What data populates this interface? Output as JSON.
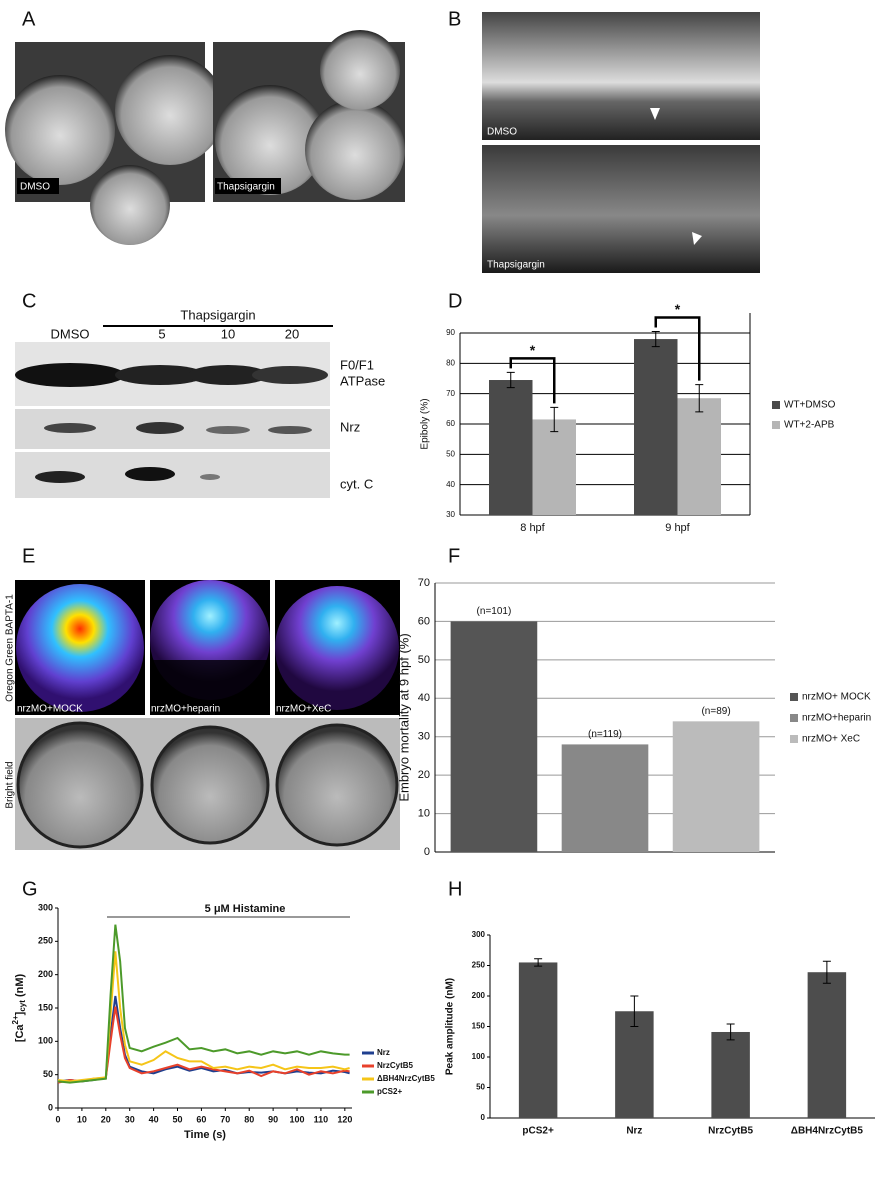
{
  "figure": {
    "panel_labels": [
      "A",
      "B",
      "C",
      "D",
      "E",
      "F",
      "G",
      "H"
    ],
    "a": {
      "captions": [
        "DMSO",
        "Thapsigargin"
      ]
    },
    "b": {
      "captions": [
        "DMSO",
        "Thapsigargin"
      ]
    },
    "c": {
      "treatment": "Thapsigargin",
      "lanes": [
        "DMSO",
        "5",
        "10",
        "20"
      ],
      "bands": [
        [
          "F0/F1",
          "ATPase"
        ],
        "Nrz",
        "cyt. C"
      ]
    },
    "e": {
      "row_labels": [
        "Oregon Green BAPTA-1",
        "Bright field"
      ],
      "captions": [
        "nrzMO+MOCK",
        "nrzMO+heparin",
        "nrzMO+XeC"
      ]
    }
  },
  "chart_data": [
    {
      "type": "bar",
      "y_label": "Epiboly (%)",
      "categories": [
        "8 hpf",
        "9 hpf"
      ],
      "series": [
        {
          "name": "WT+DMSO",
          "color": "#4a4a4a",
          "values": [
            74.5,
            88
          ],
          "errors": [
            2.5,
            2.5
          ]
        },
        {
          "name": "WT+2-APB",
          "color": "#b5b5b5",
          "values": [
            61.5,
            68.5
          ],
          "errors": [
            4,
            4.5
          ]
        }
      ],
      "ylim": [
        30,
        90
      ],
      "yticks": [
        30,
        40,
        50,
        60,
        70,
        80,
        90
      ],
      "grid": true,
      "legend": "right",
      "annotations": [
        "*",
        "*"
      ]
    },
    {
      "type": "bar",
      "y_label": "Embryo mortality at 9 hpf (%)",
      "categories": [
        null
      ],
      "series": [
        {
          "name": "nrzMO+ MOCK",
          "color": "#555555",
          "values": [
            60
          ]
        },
        {
          "name": "nrzMO+heparin",
          "color": "#888888",
          "values": [
            28
          ]
        },
        {
          "name": "nrzMO+ XeC",
          "color": "#bbbbbb",
          "values": [
            34
          ]
        }
      ],
      "ylim": [
        0,
        70
      ],
      "yticks": [
        0,
        10,
        20,
        30,
        40,
        50,
        60,
        70
      ],
      "grid": true,
      "legend": "right",
      "annotations": [
        "(n=101)",
        "(n=119)",
        "(n=89)"
      ]
    },
    {
      "type": "line",
      "title": "5 μM Histamine",
      "x_label": "Time (s)",
      "y_label": [
        "[Ca",
        "2+",
        "]",
        "cyt",
        " (nM)"
      ],
      "x": [
        0,
        5,
        10,
        15,
        20,
        22,
        24,
        26,
        28,
        30,
        35,
        40,
        45,
        50,
        55,
        60,
        65,
        70,
        75,
        80,
        85,
        90,
        95,
        100,
        105,
        110,
        115,
        120,
        122
      ],
      "series": [
        {
          "name": "Nrz",
          "color": "#1f3f8f",
          "values": [
            40,
            42,
            40,
            42,
            45,
            110,
            168,
            120,
            80,
            62,
            55,
            52,
            58,
            62,
            56,
            60,
            55,
            57,
            52,
            54,
            53,
            55,
            52,
            55,
            53,
            52,
            56,
            54,
            52
          ]
        },
        {
          "name": "NrzCytB5",
          "color": "#e8412b",
          "values": [
            38,
            42,
            40,
            44,
            45,
            100,
            152,
            110,
            75,
            60,
            52,
            55,
            60,
            65,
            58,
            62,
            58,
            55,
            52,
            56,
            48,
            55,
            52,
            58,
            50,
            55,
            52,
            56,
            55
          ]
        },
        {
          "name": "ΔBH4NrzCytB5",
          "color": "#f5c518",
          "values": [
            42,
            40,
            42,
            44,
            46,
            140,
            235,
            150,
            95,
            70,
            65,
            72,
            85,
            75,
            70,
            70,
            60,
            62,
            58,
            62,
            60,
            65,
            58,
            62,
            60,
            60,
            62,
            58,
            60
          ]
        },
        {
          "name": "pCS2+",
          "color": "#4c9a2a",
          "values": [
            40,
            38,
            40,
            42,
            44,
            170,
            275,
            220,
            120,
            90,
            85,
            92,
            98,
            105,
            88,
            90,
            85,
            88,
            82,
            85,
            80,
            85,
            82,
            85,
            80,
            85,
            82,
            80,
            80
          ]
        }
      ],
      "xlim": [
        0,
        123
      ],
      "xticks": [
        0,
        10,
        20,
        30,
        40,
        50,
        60,
        70,
        80,
        90,
        100,
        110,
        120
      ],
      "ylim": [
        0,
        300
      ],
      "yticks": [
        0,
        50,
        100,
        150,
        200,
        250,
        300
      ],
      "grid": false,
      "legend": "right"
    },
    {
      "type": "bar",
      "y_label": "Peak amplitude (nM)",
      "categories": [
        "pCS2+",
        "Nrz",
        "NrzCytB5",
        "ΔBH4NrzCytB5"
      ],
      "series": [
        {
          "color": "#4d4d4d",
          "values": [
            255,
            175,
            141,
            239
          ],
          "errors": [
            6,
            25,
            13,
            18
          ]
        }
      ],
      "ylim": [
        0,
        300
      ],
      "yticks": [
        0,
        50,
        100,
        150,
        200,
        250,
        300
      ],
      "grid": false
    }
  ]
}
